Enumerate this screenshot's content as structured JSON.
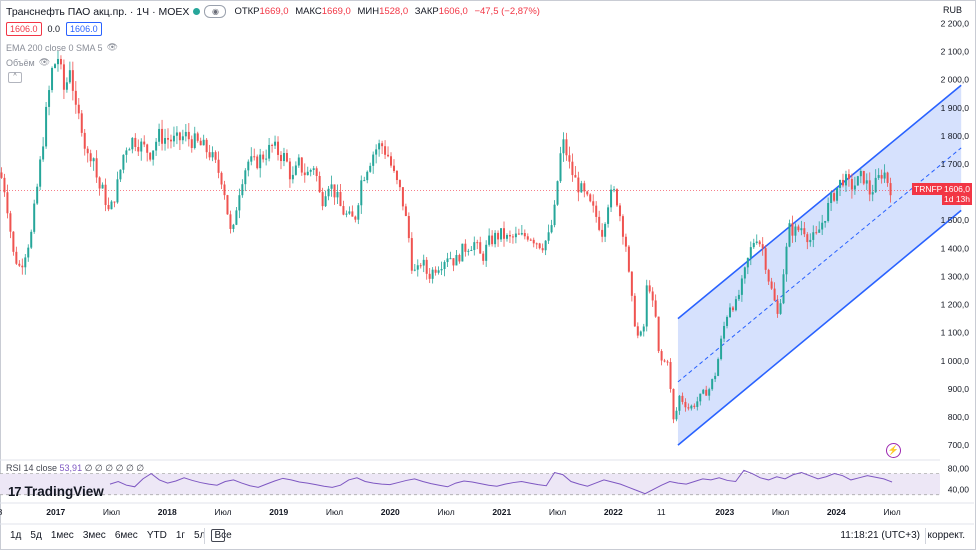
{
  "header": {
    "symbol": "Транснефть ПАО акц.пр. · 1Ч · MOEX",
    "ohlc": [
      {
        "label": "ОТКР",
        "value": "1669,0"
      },
      {
        "label": "МАКС",
        "value": "1669,0"
      },
      {
        "label": "МИН",
        "value": "1528,0"
      },
      {
        "label": "ЗАКР",
        "value": "1606,0"
      },
      {
        "label": "",
        "value": "−47,5 (−2,87%)"
      }
    ],
    "sell_price": "1606.0",
    "spread": "0.0",
    "buy_price": "1606.0"
  },
  "indicators": {
    "ema_label": "EMA 200 close 0 SMA 5",
    "volume_label": "Объём",
    "rsi_label": "RSI 14 close",
    "rsi_value": "53,91",
    "rsi_placeholders": "∅ ∅ ∅ ∅ ∅ ∅"
  },
  "logo": "TradingView",
  "currency": "RUB",
  "ticker_tag": "TRNFP",
  "price_tag": {
    "price": "1606,0",
    "countdown": "1d 13h"
  },
  "bottom": {
    "timeframes": [
      "1д",
      "5д",
      "1мес",
      "3мес",
      "6мес",
      "YTD",
      "1г",
      "5л",
      "Все"
    ],
    "clock": "11:18:21 (UTC+3)",
    "adjust": "коррект."
  },
  "chart_data": {
    "type": "candlestick",
    "y_axis_ticks": [
      2200,
      2100,
      2000,
      1900,
      1800,
      1700,
      1600,
      1500,
      1400,
      1300,
      1200,
      1100,
      1000,
      900,
      800,
      700
    ],
    "y_axis_labels": [
      "2 200,0",
      "2 100,0",
      "2 000,0",
      "1 900,0",
      "1 800,0",
      "1 700,0",
      "1 600,0",
      "1 500,0",
      "1 400,0",
      "1 300,0",
      "1 200,0",
      "1 100,0",
      "1 000,0",
      "900,0",
      "800,0",
      "700,0"
    ],
    "ylim": [
      665,
      2230
    ],
    "xlim": [
      2016.5,
      2024.93
    ],
    "x_axis_labels": [
      {
        "text": "8",
        "x": 2016.5
      },
      {
        "text": "2017",
        "x": 2017.0
      },
      {
        "text": "Июл",
        "x": 2017.5
      },
      {
        "text": "2018",
        "x": 2018.0
      },
      {
        "text": "Июл",
        "x": 2018.5
      },
      {
        "text": "2019",
        "x": 2019.0
      },
      {
        "text": "Июл",
        "x": 2019.5
      },
      {
        "text": "2020",
        "x": 2020.0
      },
      {
        "text": "Июл",
        "x": 2020.5
      },
      {
        "text": "2021",
        "x": 2021.0
      },
      {
        "text": "Июл",
        "x": 2021.5
      },
      {
        "text": "2022",
        "x": 2022.0
      },
      {
        "text": "11",
        "x": 2022.43
      },
      {
        "text": "2023",
        "x": 2023.0
      },
      {
        "text": "Июл",
        "x": 2023.5
      },
      {
        "text": "2024",
        "x": 2024.0
      },
      {
        "text": "Июл",
        "x": 2024.5
      }
    ],
    "last_price": 1606,
    "price_path": [
      [
        2016.5,
        1670
      ],
      [
        2016.55,
        1600
      ],
      [
        2016.62,
        1380
      ],
      [
        2016.68,
        1330
      ],
      [
        2016.78,
        1450
      ],
      [
        2016.86,
        1700
      ],
      [
        2016.92,
        1900
      ],
      [
        2016.97,
        2040
      ],
      [
        2017.02,
        2080
      ],
      [
        2017.08,
        1950
      ],
      [
        2017.13,
        2060
      ],
      [
        2017.18,
        1880
      ],
      [
        2017.23,
        1850
      ],
      [
        2017.28,
        1720
      ],
      [
        2017.33,
        1750
      ],
      [
        2017.38,
        1620
      ],
      [
        2017.43,
        1600
      ],
      [
        2017.48,
        1520
      ],
      [
        2017.55,
        1620
      ],
      [
        2017.62,
        1760
      ],
      [
        2017.7,
        1790
      ],
      [
        2017.78,
        1760
      ],
      [
        2017.85,
        1740
      ],
      [
        2017.92,
        1800
      ],
      [
        2018.0,
        1790
      ],
      [
        2018.08,
        1780
      ],
      [
        2018.16,
        1800
      ],
      [
        2018.24,
        1780
      ],
      [
        2018.32,
        1760
      ],
      [
        2018.38,
        1740
      ],
      [
        2018.44,
        1690
      ],
      [
        2018.5,
        1640
      ],
      [
        2018.54,
        1530
      ],
      [
        2018.58,
        1420
      ],
      [
        2018.62,
        1550
      ],
      [
        2018.66,
        1640
      ],
      [
        2018.72,
        1710
      ],
      [
        2018.78,
        1700
      ],
      [
        2018.86,
        1730
      ],
      [
        2018.94,
        1760
      ],
      [
        2019.0,
        1740
      ],
      [
        2019.06,
        1720
      ],
      [
        2019.12,
        1640
      ],
      [
        2019.18,
        1700
      ],
      [
        2019.25,
        1660
      ],
      [
        2019.32,
        1700
      ],
      [
        2019.38,
        1560
      ],
      [
        2019.44,
        1640
      ],
      [
        2019.5,
        1600
      ],
      [
        2019.56,
        1540
      ],
      [
        2019.62,
        1510
      ],
      [
        2019.68,
        1500
      ],
      [
        2019.74,
        1640
      ],
      [
        2019.8,
        1700
      ],
      [
        2019.86,
        1750
      ],
      [
        2019.92,
        1770
      ],
      [
        2019.98,
        1730
      ],
      [
        2020.04,
        1650
      ],
      [
        2020.1,
        1590
      ],
      [
        2020.16,
        1460
      ],
      [
        2020.2,
        1320
      ],
      [
        2020.24,
        1310
      ],
      [
        2020.28,
        1360
      ],
      [
        2020.34,
        1300
      ],
      [
        2020.4,
        1330
      ],
      [
        2020.46,
        1350
      ],
      [
        2020.52,
        1380
      ],
      [
        2020.58,
        1350
      ],
      [
        2020.64,
        1390
      ],
      [
        2020.7,
        1410
      ],
      [
        2020.76,
        1420
      ],
      [
        2020.82,
        1360
      ],
      [
        2020.88,
        1420
      ],
      [
        2020.94,
        1440
      ],
      [
        2021.0,
        1450
      ],
      [
        2021.06,
        1430
      ],
      [
        2021.12,
        1440
      ],
      [
        2021.18,
        1440
      ],
      [
        2021.24,
        1450
      ],
      [
        2021.3,
        1430
      ],
      [
        2021.36,
        1410
      ],
      [
        2021.42,
        1440
      ],
      [
        2021.47,
        1520
      ],
      [
        2021.52,
        1720
      ],
      [
        2021.56,
        1780
      ],
      [
        2021.6,
        1700
      ],
      [
        2021.66,
        1640
      ],
      [
        2021.72,
        1600
      ],
      [
        2021.78,
        1560
      ],
      [
        2021.84,
        1520
      ],
      [
        2021.9,
        1460
      ],
      [
        2021.96,
        1580
      ],
      [
        2022.02,
        1600
      ],
      [
        2022.08,
        1480
      ],
      [
        2022.12,
        1400
      ],
      [
        2022.15,
        1250
      ],
      [
        2022.18,
        1180
      ],
      [
        2022.21,
        1090
      ],
      [
        2022.24,
        1080
      ],
      [
        2022.28,
        1130
      ],
      [
        2022.31,
        1320
      ],
      [
        2022.34,
        1220
      ],
      [
        2022.38,
        1150
      ],
      [
        2022.41,
        1010
      ],
      [
        2022.45,
        990
      ],
      [
        2022.49,
        1010
      ],
      [
        2022.52,
        860
      ],
      [
        2022.55,
        750
      ],
      [
        2022.58,
        880
      ],
      [
        2022.62,
        860
      ],
      [
        2022.68,
        830
      ],
      [
        2022.74,
        850
      ],
      [
        2022.8,
        880
      ],
      [
        2022.86,
        900
      ],
      [
        2022.92,
        960
      ],
      [
        2022.98,
        1100
      ],
      [
        2023.04,
        1200
      ],
      [
        2023.1,
        1200
      ],
      [
        2023.16,
        1280
      ],
      [
        2023.22,
        1380
      ],
      [
        2023.28,
        1450
      ],
      [
        2023.34,
        1400
      ],
      [
        2023.4,
        1280
      ],
      [
        2023.44,
        1220
      ],
      [
        2023.48,
        1150
      ],
      [
        2023.52,
        1300
      ],
      [
        2023.58,
        1470
      ],
      [
        2023.64,
        1460
      ],
      [
        2023.7,
        1480
      ],
      [
        2023.76,
        1430
      ],
      [
        2023.82,
        1440
      ],
      [
        2023.88,
        1500
      ],
      [
        2023.94,
        1560
      ],
      [
        2024.0,
        1610
      ],
      [
        2024.06,
        1650
      ],
      [
        2024.12,
        1620
      ],
      [
        2024.18,
        1630
      ],
      [
        2024.24,
        1660
      ],
      [
        2024.3,
        1600
      ],
      [
        2024.36,
        1630
      ],
      [
        2024.42,
        1680
      ],
      [
        2024.47,
        1630
      ],
      [
        2024.5,
        1606
      ]
    ],
    "channel": {
      "upper": [
        [
          2022.58,
          1150
        ],
        [
          2025.12,
          1980
        ]
      ],
      "lower": [
        [
          2022.58,
          700
        ],
        [
          2025.12,
          1535
        ]
      ],
      "fill": "#cfdcfd",
      "line_color": "#2962ff"
    },
    "rsi": {
      "upper_band": 70,
      "lower_band": 30,
      "y_axis_labels": [
        "80,00",
        "40,00"
      ],
      "values_sample": [
        50,
        55,
        48,
        45,
        60,
        70,
        58,
        52,
        56,
        62,
        57,
        53,
        50,
        48,
        55,
        58,
        52,
        47,
        44,
        50,
        56,
        61,
        58,
        54,
        52,
        49,
        46,
        44,
        48,
        58,
        62,
        55,
        52,
        50,
        49,
        53,
        57,
        60,
        55,
        51,
        48,
        45,
        52,
        56,
        54,
        51,
        48,
        46,
        50,
        53,
        55,
        52,
        49,
        47,
        72,
        68,
        55,
        50,
        46,
        52,
        58,
        54,
        50,
        44,
        38,
        32,
        40,
        48,
        55,
        52,
        50,
        55,
        60,
        58,
        62,
        57,
        55,
        76,
        70,
        62,
        58,
        64,
        60,
        68,
        72,
        66,
        60,
        64,
        70,
        66,
        58,
        62,
        66,
        63,
        60,
        54
      ]
    },
    "colors": {
      "up": "#26a69a",
      "down": "#ef5350",
      "rsi": "#7e57c2",
      "rsi_band": "#ede7f6"
    }
  }
}
